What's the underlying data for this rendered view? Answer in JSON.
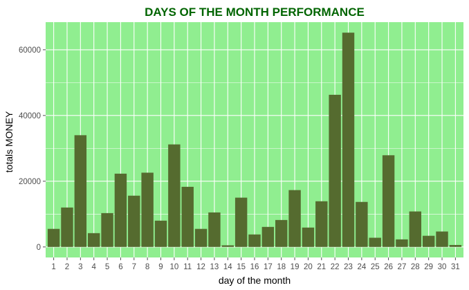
{
  "chart_data": {
    "type": "bar",
    "title": "DAYS OF THE MONTH PERFORMANCE",
    "xlabel": "day of the month",
    "ylabel": "totals MONEY",
    "categories": [
      "1",
      "2",
      "3",
      "4",
      "5",
      "6",
      "7",
      "8",
      "9",
      "10",
      "11",
      "12",
      "13",
      "14",
      "15",
      "16",
      "17",
      "18",
      "19",
      "20",
      "21",
      "22",
      "23",
      "24",
      "25",
      "26",
      "27",
      "28",
      "29",
      "30",
      "31"
    ],
    "values": [
      5500,
      12000,
      34000,
      4200,
      10300,
      22300,
      15600,
      22600,
      8000,
      31200,
      18300,
      5500,
      10500,
      500,
      15000,
      3800,
      6100,
      8200,
      17300,
      5900,
      13900,
      46300,
      65200,
      13700,
      2800,
      27900,
      2300,
      10800,
      3400,
      4700,
      600
    ],
    "ylim": [
      -3200,
      68400
    ],
    "yticks": [
      0,
      20000,
      40000,
      60000
    ],
    "ytick_labels": [
      "0",
      "20000",
      "40000",
      "60000"
    ],
    "grid": true,
    "colors": {
      "panel_background": "#90ee90",
      "grid_line": "#ffffff",
      "bar_fill": "#556b2f",
      "title_color": "#006400",
      "tick_color": "#4d4d4d"
    }
  }
}
